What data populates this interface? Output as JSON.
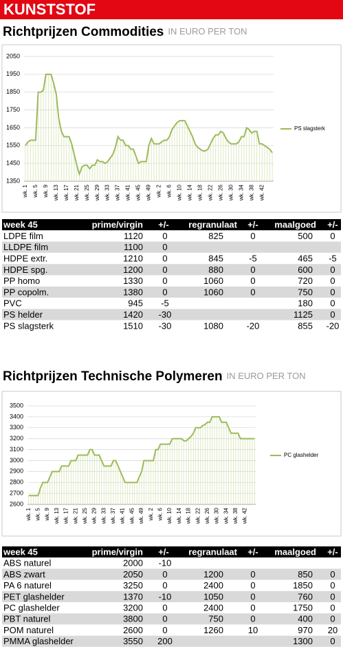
{
  "header": {
    "title": "KUNSTSTOF"
  },
  "chart_data": [
    {
      "type": "line",
      "title": "Richtprijzen Commodities",
      "subtitle": "IN EURO PER TON",
      "categories": [
        "wk. 1",
        null,
        null,
        null,
        "wk. 5",
        null,
        null,
        null,
        "wk. 9",
        null,
        null,
        null,
        "wk. 13",
        null,
        null,
        null,
        "wk. 17",
        null,
        null,
        null,
        "wk. 21",
        null,
        null,
        null,
        "wk. 25",
        null,
        null,
        null,
        "wk. 29",
        null,
        null,
        null,
        "wk. 33",
        null,
        null,
        null,
        "wk. 37",
        null,
        null,
        null,
        "wk. 41",
        null,
        null,
        null,
        "wk. 45",
        null,
        null,
        null,
        "wk. 49",
        null,
        null,
        null,
        "wk. 2",
        null,
        null,
        null,
        "wk. 6",
        null,
        null,
        null,
        "wk. 10",
        null,
        null,
        null,
        "wk. 14",
        null,
        null,
        null,
        "wk. 18",
        null,
        null,
        null,
        "wk. 22",
        null,
        null,
        null,
        "wk. 26",
        null,
        null,
        null,
        "wk. 30",
        null,
        null,
        null,
        "wk. 34",
        null,
        null,
        null,
        "wk. 38",
        null,
        null,
        null,
        "wk. 42",
        null,
        null,
        null,
        null
      ],
      "series": [
        {
          "name": "PS slagsterk",
          "color": "#9bbb59",
          "values": [
            1550,
            1570,
            1580,
            1580,
            1580,
            1850,
            1850,
            1860,
            1950,
            1950,
            1950,
            1900,
            1840,
            1700,
            1630,
            1600,
            1600,
            1600,
            1560,
            1500,
            1440,
            1390,
            1430,
            1440,
            1440,
            1420,
            1440,
            1440,
            1470,
            1460,
            1460,
            1450,
            1460,
            1480,
            1500,
            1540,
            1600,
            1580,
            1580,
            1550,
            1550,
            1530,
            1530,
            1490,
            1450,
            1460,
            1460,
            1460,
            1550,
            1590,
            1560,
            1560,
            1560,
            1570,
            1580,
            1580,
            1600,
            1640,
            1660,
            1680,
            1690,
            1690,
            1690,
            1660,
            1630,
            1600,
            1560,
            1540,
            1530,
            1520,
            1520,
            1530,
            1560,
            1590,
            1610,
            1610,
            1630,
            1620,
            1590,
            1570,
            1560,
            1560,
            1560,
            1570,
            1600,
            1600,
            1650,
            1640,
            1620,
            1630,
            1630,
            1560,
            1560,
            1550,
            1540,
            1530,
            1510
          ]
        }
      ],
      "ylim": [
        1350,
        2050
      ],
      "yticks": [
        1350,
        1450,
        1550,
        1650,
        1750,
        1850,
        1950,
        2050
      ],
      "grid": true
    },
    {
      "type": "line",
      "title": "Richtprijzen Technische Polymeren",
      "subtitle": "IN EURO PER TON",
      "categories": [
        "wk. 1",
        null,
        null,
        null,
        "wk. 5",
        null,
        null,
        null,
        "wk. 9",
        null,
        null,
        null,
        "wk. 13",
        null,
        null,
        null,
        "wk. 17",
        null,
        null,
        null,
        "wk. 21",
        null,
        null,
        null,
        "wk. 25",
        null,
        null,
        null,
        "wk. 29",
        null,
        null,
        null,
        "wk. 33",
        null,
        null,
        null,
        "wk. 37",
        null,
        null,
        null,
        "wk. 41",
        null,
        null,
        null,
        "wk. 45",
        null,
        null,
        null,
        "wk. 49",
        null,
        null,
        null,
        "wk. 2",
        null,
        null,
        null,
        "wk. 6",
        null,
        null,
        null,
        "wk. 10",
        null,
        null,
        null,
        "wk. 14",
        null,
        null,
        null,
        "wk. 18",
        null,
        null,
        null,
        "wk. 22",
        null,
        null,
        null,
        "wk. 26",
        null,
        null,
        null,
        "wk. 30",
        null,
        null,
        null,
        "wk. 34",
        null,
        null,
        null,
        "wk. 38",
        null,
        null,
        null,
        "wk. 42",
        null,
        null,
        null,
        null
      ],
      "series": [
        {
          "name": "PC glashelder",
          "color": "#9bbb59",
          "values": [
            2680,
            2680,
            2680,
            2680,
            2680,
            2750,
            2800,
            2800,
            2800,
            2850,
            2900,
            2900,
            2900,
            2900,
            2950,
            2950,
            2950,
            2950,
            3000,
            3000,
            3000,
            3050,
            3050,
            3050,
            3050,
            3050,
            3100,
            3100,
            3050,
            3050,
            3050,
            3000,
            2950,
            2950,
            2950,
            2950,
            3000,
            3000,
            2950,
            2900,
            2850,
            2800,
            2800,
            2800,
            2800,
            2800,
            2800,
            2850,
            2900,
            3000,
            3000,
            3000,
            3000,
            3000,
            3100,
            3100,
            3150,
            3150,
            3150,
            3150,
            3150,
            3200,
            3200,
            3200,
            3200,
            3200,
            3180,
            3180,
            3200,
            3220,
            3250,
            3300,
            3300,
            3300,
            3320,
            3330,
            3350,
            3350,
            3400,
            3400,
            3400,
            3400,
            3350,
            3350,
            3350,
            3300,
            3250,
            3250,
            3250,
            3250,
            3200,
            3200,
            3200,
            3200,
            3200,
            3200,
            3200
          ]
        }
      ],
      "ylim": [
        2600,
        3500
      ],
      "yticks": [
        2600,
        2700,
        2800,
        2900,
        3000,
        3100,
        3200,
        3300,
        3400,
        3500
      ],
      "grid": true
    }
  ],
  "tables": [
    {
      "columns": [
        "week 45",
        "prime/virgin",
        "+/-",
        "regranulaat",
        "+/-",
        "maalgoed",
        "+/-"
      ],
      "rows": [
        [
          "LDPE film",
          1120,
          0,
          825,
          0,
          500,
          0
        ],
        [
          "LLDPE film",
          1100,
          0,
          null,
          null,
          null,
          null
        ],
        [
          "HDPE extr.",
          1210,
          0,
          845,
          -5,
          465,
          -5
        ],
        [
          "HDPE spg.",
          1200,
          0,
          880,
          0,
          600,
          0
        ],
        [
          "PP homo",
          1330,
          0,
          1060,
          0,
          720,
          0
        ],
        [
          "PP copolm.",
          1380,
          0,
          1060,
          0,
          750,
          0
        ],
        [
          "PVC",
          945,
          -5,
          null,
          null,
          180,
          0
        ],
        [
          "PS helder",
          1420,
          -30,
          null,
          null,
          1125,
          0
        ],
        [
          "PS slagsterk",
          1510,
          -30,
          1080,
          -20,
          855,
          -20
        ]
      ]
    },
    {
      "columns": [
        "week 45",
        "prime/virgin",
        "+/-",
        "regranulaat",
        "+/-",
        "maalgoed",
        "+/-"
      ],
      "rows": [
        [
          "ABS naturel",
          2000,
          -10,
          null,
          null,
          null,
          null
        ],
        [
          "ABS zwart",
          2050,
          0,
          1200,
          0,
          850,
          0
        ],
        [
          "PA 6 naturel",
          3250,
          0,
          2400,
          0,
          1850,
          0
        ],
        [
          "PET glashelder",
          1370,
          -10,
          1050,
          0,
          760,
          0
        ],
        [
          "PC glashelder",
          3200,
          0,
          2400,
          0,
          1750,
          0
        ],
        [
          "PBT naturel",
          3800,
          0,
          750,
          0,
          400,
          0
        ],
        [
          "POM naturel",
          2600,
          0,
          1260,
          10,
          970,
          20
        ],
        [
          "PMMA glashelder",
          3550,
          200,
          null,
          null,
          1300,
          0
        ]
      ]
    }
  ]
}
